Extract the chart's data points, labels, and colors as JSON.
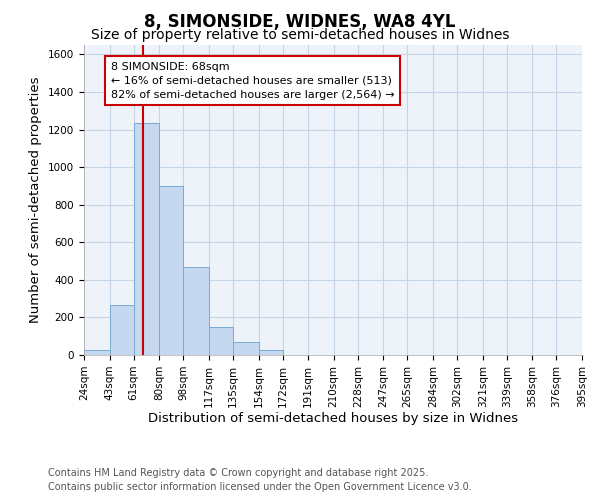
{
  "title": "8, SIMONSIDE, WIDNES, WA8 4YL",
  "subtitle": "Size of property relative to semi-detached houses in Widnes",
  "xlabel": "Distribution of semi-detached houses by size in Widnes",
  "ylabel": "Number of semi-detached properties",
  "bin_labels": [
    "24sqm",
    "43sqm",
    "61sqm",
    "80sqm",
    "98sqm",
    "117sqm",
    "135sqm",
    "154sqm",
    "172sqm",
    "191sqm",
    "210sqm",
    "228sqm",
    "247sqm",
    "265sqm",
    "284sqm",
    "302sqm",
    "321sqm",
    "339sqm",
    "358sqm",
    "376sqm",
    "395sqm"
  ],
  "bin_edges": [
    24,
    43,
    61,
    80,
    98,
    117,
    135,
    154,
    172,
    191,
    210,
    228,
    247,
    265,
    284,
    302,
    321,
    339,
    358,
    376,
    395
  ],
  "bar_heights": [
    28,
    268,
    1235,
    900,
    470,
    150,
    70,
    28,
    0,
    0,
    0,
    0,
    0,
    0,
    0,
    0,
    0,
    0,
    0,
    0
  ],
  "bar_color": "#c5d8f0",
  "bar_edge_color": "#7aaad0",
  "red_line_x": 68,
  "annotation_title": "8 SIMONSIDE: 68sqm",
  "annotation_line1": "← 16% of semi-detached houses are smaller (513)",
  "annotation_line2": "82% of semi-detached houses are larger (2,564) →",
  "annotation_box_facecolor": "#ffffff",
  "annotation_box_edgecolor": "#cc0000",
  "red_line_color": "#cc0000",
  "grid_color": "#c5d5e8",
  "background_color": "#ffffff",
  "plot_bg_color": "#eef3fa",
  "ylim": [
    0,
    1650
  ],
  "yticks": [
    0,
    200,
    400,
    600,
    800,
    1000,
    1200,
    1400,
    1600
  ],
  "footer1": "Contains HM Land Registry data © Crown copyright and database right 2025.",
  "footer2": "Contains public sector information licensed under the Open Government Licence v3.0.",
  "title_fontsize": 12,
  "subtitle_fontsize": 10,
  "axis_label_fontsize": 9.5,
  "tick_fontsize": 7.5,
  "annotation_fontsize": 8,
  "footer_fontsize": 7
}
